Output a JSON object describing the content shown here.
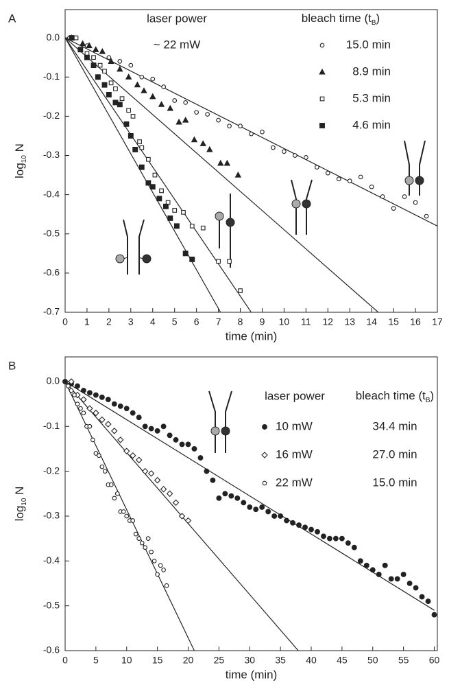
{
  "chart_data": [
    {
      "type": "scatter",
      "panel": "A",
      "ylabel": {
        "base": "log",
        "sub": "10",
        "rest": " N"
      },
      "xlabel": "time (min)",
      "legend_title": "bleach time (t",
      "legend_title_sub": "B",
      "legend_title_end": ")",
      "power_title": "laser power",
      "power_value": "~ 22 mW",
      "xlim": [
        0,
        17
      ],
      "ylim": [
        -0.7,
        0.072
      ],
      "xticks": [
        0,
        1,
        2,
        3,
        4,
        5,
        6,
        7,
        8,
        9,
        10,
        11,
        12,
        13,
        14,
        15,
        16,
        17
      ],
      "yticks": [
        {
          "value": 0,
          "label": "0.0"
        },
        -0.1,
        -0.2,
        -0.3,
        -0.4,
        -0.5,
        -0.6,
        -0.7
      ],
      "series": [
        {
          "name": "15.0 min",
          "marker": "open-circle",
          "color": "#222222",
          "x": [
            0.2,
            0.5,
            1.0,
            2.0,
            2.5,
            3.0,
            3.5,
            4.0,
            4.5,
            5.0,
            5.5,
            6.0,
            6.5,
            7.0,
            7.5,
            8.0,
            8.5,
            9.0,
            9.5,
            10.0,
            10.5,
            11.0,
            11.5,
            12.0,
            12.5,
            13.0,
            13.5,
            14.0,
            14.5,
            15.0,
            15.5,
            16.0,
            16.5
          ],
          "values": [
            0,
            0,
            -0.02,
            -0.05,
            -0.06,
            -0.07,
            -0.1,
            -0.105,
            -0.125,
            -0.16,
            -0.165,
            -0.19,
            -0.195,
            -0.21,
            -0.225,
            -0.225,
            -0.245,
            -0.24,
            -0.28,
            -0.29,
            -0.3,
            -0.305,
            -0.33,
            -0.345,
            -0.36,
            -0.365,
            -0.355,
            -0.38,
            -0.405,
            -0.435,
            -0.405,
            -0.42,
            -0.455
          ],
          "fit_x": [
            0,
            17
          ],
          "fit_y": [
            0,
            -0.48
          ]
        },
        {
          "name": "8.9 min",
          "marker": "filled-triangle",
          "color": "#222222",
          "x": [
            0.3,
            0.8,
            1.1,
            1.4,
            1.7,
            2.1,
            2.5,
            2.9,
            3.3,
            3.6,
            4.0,
            4.4,
            4.8,
            5.2,
            5.5,
            5.9,
            6.3,
            6.6,
            7.1,
            7.4,
            7.9
          ],
          "values": [
            0,
            -0.015,
            -0.02,
            -0.03,
            -0.035,
            -0.06,
            -0.08,
            -0.1,
            -0.12,
            -0.135,
            -0.15,
            -0.17,
            -0.18,
            -0.215,
            -0.21,
            -0.26,
            -0.27,
            -0.285,
            -0.32,
            -0.32,
            -0.35
          ],
          "fit_x": [
            0,
            14.3
          ],
          "fit_y": [
            0,
            -0.7
          ]
        },
        {
          "name": "5.3 min",
          "marker": "open-square",
          "color": "#222222",
          "x": [
            0.5,
            1.0,
            1.3,
            1.6,
            1.8,
            2.1,
            2.3,
            2.6,
            2.9,
            3.1,
            3.4,
            3.5,
            3.8,
            4.1,
            4.4,
            4.7,
            5.0,
            5.4,
            5.8,
            6.3,
            7.0,
            7.5,
            8.0
          ],
          "values": [
            0,
            -0.04,
            -0.05,
            -0.07,
            -0.085,
            -0.115,
            -0.13,
            -0.155,
            -0.185,
            -0.2,
            -0.265,
            -0.28,
            -0.31,
            -0.35,
            -0.39,
            -0.42,
            -0.44,
            -0.445,
            -0.48,
            -0.485,
            -0.57,
            -0.57,
            -0.645
          ],
          "fit_x": [
            0,
            8.5
          ],
          "fit_y": [
            0,
            -0.7
          ]
        },
        {
          "name": "4.6 min",
          "marker": "filled-square",
          "color": "#222222",
          "x": [
            0.3,
            0.7,
            1.0,
            1.3,
            1.5,
            1.8,
            2.0,
            2.3,
            2.5,
            2.8,
            3.0,
            3.2,
            3.5,
            3.8,
            4.0,
            4.3,
            4.6,
            4.8,
            5.1,
            5.5,
            5.8
          ],
          "values": [
            0,
            -0.03,
            -0.05,
            -0.07,
            -0.1,
            -0.12,
            -0.145,
            -0.165,
            -0.17,
            -0.22,
            -0.25,
            -0.285,
            -0.33,
            -0.37,
            -0.38,
            -0.41,
            -0.43,
            -0.46,
            -0.48,
            -0.55,
            -0.565
          ],
          "fit_x": [
            0,
            7.1
          ],
          "fit_y": [
            0,
            -0.7
          ]
        }
      ]
    },
    {
      "type": "scatter",
      "panel": "B",
      "ylabel": {
        "base": "log",
        "sub": "10",
        "rest": " N"
      },
      "xlabel": "time (min)",
      "legend_title": "bleach time (t",
      "legend_title_sub": "B",
      "legend_title_end": ")",
      "power_title": "laser power",
      "xlim": [
        0,
        60.5
      ],
      "ylim": [
        -0.6,
        0.055
      ],
      "xticks": [
        0,
        5,
        10,
        15,
        20,
        25,
        30,
        35,
        40,
        45,
        50,
        55,
        60
      ],
      "yticks": [
        {
          "value": 0,
          "label": "0.0"
        },
        -0.1,
        -0.2,
        -0.3,
        -0.4,
        -0.5,
        -0.6
      ],
      "series": [
        {
          "name": "10 mW",
          "bleach_time": "34.4 min",
          "marker": "filled-circle",
          "color": "#222222",
          "x": [
            0,
            1,
            2,
            3,
            4,
            5,
            6,
            7,
            8,
            9,
            10,
            11,
            12,
            13,
            14,
            15,
            16,
            17,
            18,
            19,
            20,
            21,
            22,
            23,
            24,
            25,
            26,
            27,
            28,
            29,
            30,
            31,
            32,
            33,
            34,
            35,
            36,
            37,
            38,
            39,
            40,
            41,
            42,
            43,
            44,
            45,
            46,
            47,
            48,
            49,
            50,
            51,
            52,
            53,
            54,
            55,
            56,
            57,
            58,
            59,
            60
          ],
          "values": [
            0,
            -0.005,
            -0.01,
            -0.02,
            -0.025,
            -0.03,
            -0.035,
            -0.04,
            -0.05,
            -0.055,
            -0.06,
            -0.07,
            -0.08,
            -0.1,
            -0.105,
            -0.11,
            -0.1,
            -0.12,
            -0.13,
            -0.14,
            -0.14,
            -0.15,
            -0.17,
            -0.2,
            -0.22,
            -0.26,
            -0.25,
            -0.255,
            -0.26,
            -0.27,
            -0.28,
            -0.285,
            -0.28,
            -0.29,
            -0.3,
            -0.3,
            -0.31,
            -0.315,
            -0.32,
            -0.325,
            -0.33,
            -0.335,
            -0.345,
            -0.35,
            -0.35,
            -0.35,
            -0.36,
            -0.37,
            -0.4,
            -0.41,
            -0.42,
            -0.43,
            -0.41,
            -0.44,
            -0.44,
            -0.43,
            -0.45,
            -0.46,
            -0.48,
            -0.49,
            -0.52
          ],
          "fit_x": [
            0,
            60
          ],
          "fit_y": [
            0,
            -0.51
          ]
        },
        {
          "name": "16 mW",
          "bleach_time": "27.0 min",
          "marker": "open-diamond",
          "color": "#222222",
          "x": [
            1,
            2,
            3,
            4,
            5,
            6,
            7,
            8,
            9,
            10,
            11,
            12,
            13,
            14,
            15,
            16,
            17,
            18,
            19,
            20
          ],
          "values": [
            0,
            -0.03,
            -0.04,
            -0.06,
            -0.07,
            -0.085,
            -0.095,
            -0.11,
            -0.13,
            -0.155,
            -0.165,
            -0.175,
            -0.2,
            -0.205,
            -0.22,
            -0.24,
            -0.25,
            -0.27,
            -0.3,
            -0.31
          ],
          "fit_x": [
            0,
            37.9
          ],
          "fit_y": [
            0,
            -0.6
          ]
        },
        {
          "name": "22 mW",
          "bleach_time": "15.0 min",
          "marker": "open-circle",
          "color": "#222222",
          "x": [
            0.5,
            1,
            1.5,
            2,
            2.5,
            3,
            3.5,
            4,
            4.5,
            5,
            5.5,
            6,
            6.5,
            7,
            7.5,
            8,
            8.5,
            9,
            9.5,
            10,
            10.5,
            11,
            11.5,
            12,
            12.5,
            13,
            13.5,
            14,
            14.5,
            15,
            15.5,
            16,
            16.5
          ],
          "values": [
            -0.01,
            -0.02,
            -0.03,
            -0.05,
            -0.06,
            -0.07,
            -0.1,
            -0.1,
            -0.13,
            -0.16,
            -0.165,
            -0.19,
            -0.2,
            -0.23,
            -0.23,
            -0.26,
            -0.25,
            -0.29,
            -0.29,
            -0.3,
            -0.31,
            -0.31,
            -0.34,
            -0.35,
            -0.36,
            -0.37,
            -0.35,
            -0.38,
            -0.4,
            -0.43,
            -0.41,
            -0.42,
            -0.455
          ],
          "fit_x": [
            0,
            21
          ],
          "fit_y": [
            0,
            -0.6
          ]
        }
      ]
    }
  ]
}
